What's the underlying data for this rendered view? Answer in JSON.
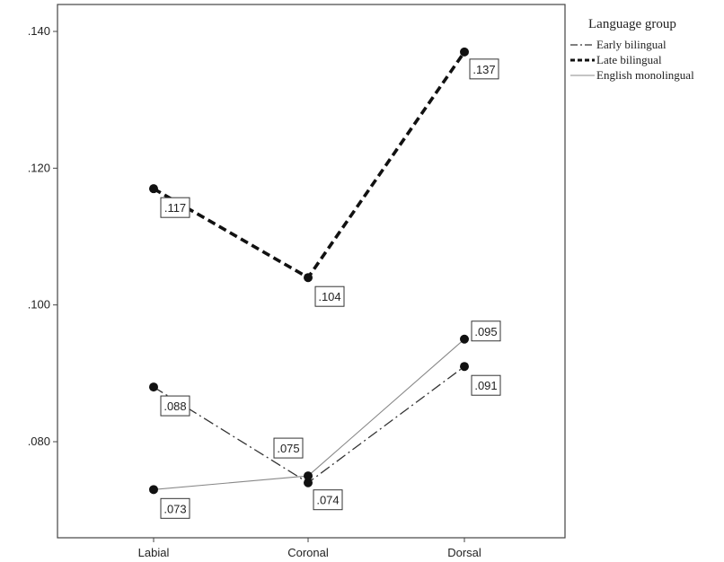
{
  "chart_data": {
    "type": "line",
    "title": "",
    "xlabel": "",
    "ylabel": "",
    "categories": [
      "Labial",
      "Coronal",
      "Dorsal"
    ],
    "ylim": [
      0.068,
      0.145
    ],
    "yticks": [
      0.08,
      0.1,
      0.12,
      0.14
    ],
    "ytick_labels": [
      ".080",
      ".100",
      ".120",
      ".140"
    ],
    "grid": false,
    "legend": {
      "title": "Language group",
      "placement": "top-right, outside plot"
    },
    "series": [
      {
        "name": "Early bilingual",
        "style": "dash-dot",
        "color": "#333333",
        "values": [
          0.088,
          0.074,
          0.091
        ],
        "labels": [
          ".088",
          ".074",
          ".091"
        ]
      },
      {
        "name": "Late bilingual",
        "style": "heavy-dashed",
        "color": "#111111",
        "values": [
          0.117,
          0.104,
          0.137
        ],
        "labels": [
          ".117",
          ".104",
          ".137"
        ]
      },
      {
        "name": "English monolingual",
        "style": "thin-solid",
        "color": "#888888",
        "values": [
          0.073,
          0.075,
          0.095
        ],
        "labels": [
          ".073",
          ".075",
          ".095"
        ]
      }
    ]
  }
}
